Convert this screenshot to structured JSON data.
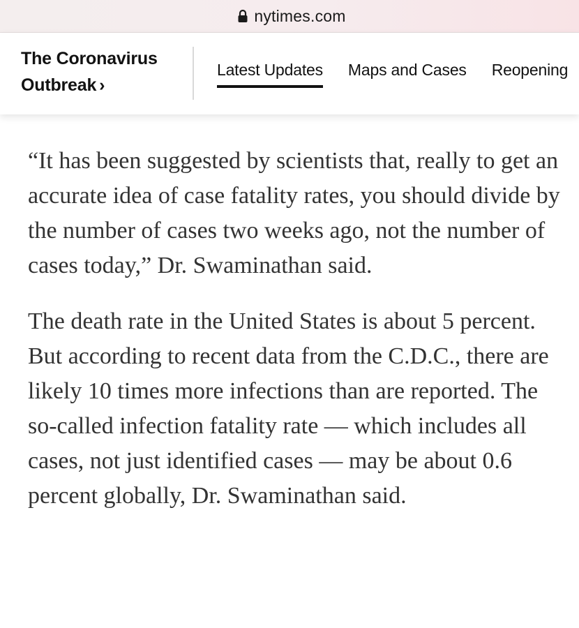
{
  "browser": {
    "url": "nytimes.com",
    "lock_icon": "lock-icon"
  },
  "nav": {
    "section_line1": "The Coronavirus",
    "section_line2": "Outbreak",
    "section_chevron": "›",
    "tabs": [
      {
        "label": "Latest Updates",
        "active": true
      },
      {
        "label": "Maps and Cases",
        "active": false
      },
      {
        "label": "Reopening",
        "active": false
      }
    ]
  },
  "article": {
    "paragraphs": [
      "“It has been suggested by scientists that, really to get an accurate idea of case fatality rates, you should divide by the number of cases two weeks ago, not the number of cases today,” Dr. Swaminathan said.",
      "The death rate in the United States is about 5 percent. But according to recent data from the C.D.C., there are likely 10 times more infections than are reported. The so-called infection fatality rate — which includes all cases, not just identified cases — may be about 0.6 percent globally, Dr. Swaminathan said."
    ]
  }
}
